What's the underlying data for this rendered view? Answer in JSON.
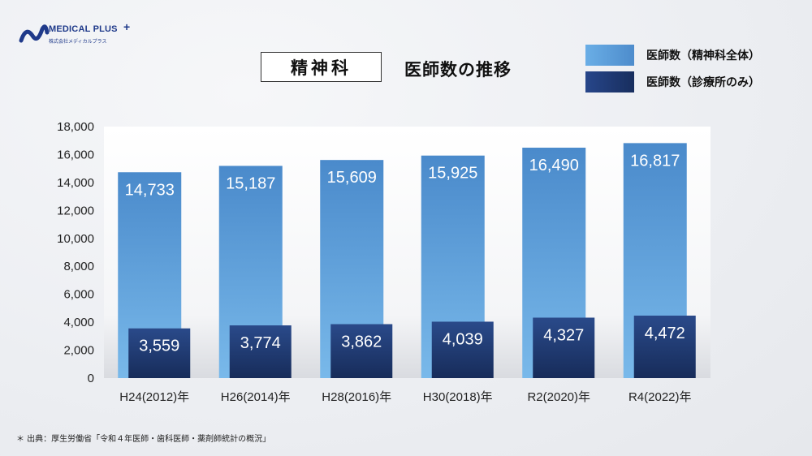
{
  "logo": {
    "name": "MEDICAL PLUS",
    "plus": "+",
    "sub": "株式会社メディカルプラス"
  },
  "title": "精神科",
  "subtitle": "医師数の推移",
  "legend": [
    {
      "label": "医師数（精神科全体）",
      "color": "#5b9bd5"
    },
    {
      "label": "医師数（診療所のみ）",
      "color": "#1f3a6e"
    }
  ],
  "footnote": "＊ 出典：厚生労働省「令和４年医師・歯科医師・薬剤師統計の概況」",
  "chart_data": {
    "type": "bar",
    "categories": [
      "H24(2012)年",
      "H26(2014)年",
      "H28(2016)年",
      "H30(2018)年",
      "R2(2020)年",
      "R4(2022)年"
    ],
    "series": [
      {
        "name": "医師数（精神科全体）",
        "values": [
          14733,
          15187,
          15609,
          15925,
          16490,
          16817
        ],
        "labels": [
          "14,733",
          "15,187",
          "15,609",
          "15,925",
          "16,490",
          "16,817"
        ]
      },
      {
        "name": "医師数（診療所のみ）",
        "values": [
          3559,
          3774,
          3862,
          4039,
          4327,
          4472
        ],
        "labels": [
          "3,559",
          "3,774",
          "3,862",
          "4,039",
          "4,327",
          "4,472"
        ]
      }
    ],
    "title": "精神科 医師数の推移",
    "xlabel": "",
    "ylabel": "",
    "ylim": [
      0,
      18000
    ],
    "yticks": [
      0,
      2000,
      4000,
      6000,
      8000,
      10000,
      12000,
      14000,
      16000,
      18000
    ],
    "ytick_labels": [
      "0",
      "2,000",
      "4,000",
      "6,000",
      "8,000",
      "10,000",
      "12,000",
      "14,000",
      "16,000",
      "18,000"
    ],
    "colors": {
      "total": "#5b9bd5",
      "clinic": "#1f3a6e"
    }
  }
}
